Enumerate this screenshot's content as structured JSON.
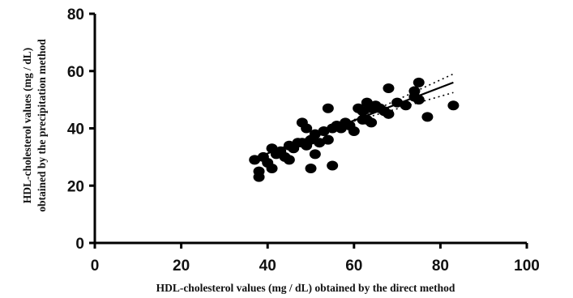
{
  "chart_data": {
    "type": "scatter",
    "title": "",
    "xlabel": "HDL-cholesterol values (mg / dL) obtained by the direct method",
    "ylabel_line1": "HDL-cholesterol values (mg / dL)",
    "ylabel_line2": "obtained by the precipitation method",
    "xlim": [
      0,
      100
    ],
    "ylim": [
      0,
      80
    ],
    "xticks": [
      0,
      20,
      40,
      60,
      80,
      100
    ],
    "yticks": [
      0,
      20,
      40,
      60,
      80
    ],
    "grid": false,
    "legend": "none",
    "point_color": "#000000",
    "points": [
      [
        37,
        29
      ],
      [
        38,
        23
      ],
      [
        38,
        25
      ],
      [
        39,
        30
      ],
      [
        40,
        28
      ],
      [
        41,
        33
      ],
      [
        41,
        26
      ],
      [
        42,
        31
      ],
      [
        43,
        32
      ],
      [
        44,
        30
      ],
      [
        45,
        34
      ],
      [
        45,
        29
      ],
      [
        46,
        33
      ],
      [
        47,
        35
      ],
      [
        48,
        42
      ],
      [
        48,
        35
      ],
      [
        49,
        40
      ],
      [
        49,
        34
      ],
      [
        50,
        26
      ],
      [
        50,
        36
      ],
      [
        51,
        38
      ],
      [
        51,
        31
      ],
      [
        52,
        35
      ],
      [
        53,
        39
      ],
      [
        54,
        47
      ],
      [
        54,
        36
      ],
      [
        55,
        27
      ],
      [
        55,
        40
      ],
      [
        56,
        41
      ],
      [
        57,
        40
      ],
      [
        58,
        42
      ],
      [
        59,
        41
      ],
      [
        60,
        39
      ],
      [
        61,
        47
      ],
      [
        62,
        46
      ],
      [
        62,
        43
      ],
      [
        63,
        49
      ],
      [
        63,
        43
      ],
      [
        64,
        47
      ],
      [
        64,
        42
      ],
      [
        65,
        48
      ],
      [
        66,
        47
      ],
      [
        67,
        46
      ],
      [
        68,
        54
      ],
      [
        68,
        45
      ],
      [
        70,
        49
      ],
      [
        72,
        48
      ],
      [
        74,
        51
      ],
      [
        74,
        53
      ],
      [
        75,
        56
      ],
      [
        75,
        50
      ],
      [
        77,
        44
      ],
      [
        83,
        48
      ]
    ],
    "regression": {
      "x_start": 37,
      "x_end": 83,
      "y_start": 29.5,
      "y_end": 56
    },
    "confidence_band": {
      "upper": {
        "x_start": 60,
        "x_end": 83,
        "y_start": 43,
        "y_end": 59
      },
      "lower": {
        "x_start": 60,
        "x_end": 83,
        "y_start": 42.5,
        "y_end": 52.5
      }
    }
  }
}
